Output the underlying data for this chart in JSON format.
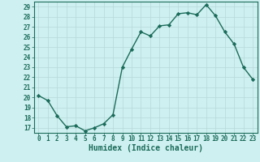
{
  "x": [
    0,
    1,
    2,
    3,
    4,
    5,
    6,
    7,
    8,
    9,
    10,
    11,
    12,
    13,
    14,
    15,
    16,
    17,
    18,
    19,
    20,
    21,
    22,
    23
  ],
  "y": [
    20.2,
    19.7,
    18.2,
    17.1,
    17.2,
    16.7,
    17.0,
    17.4,
    18.3,
    23.0,
    24.8,
    26.5,
    26.1,
    27.1,
    27.2,
    28.3,
    28.4,
    28.2,
    29.2,
    28.1,
    26.5,
    25.3,
    23.0,
    21.8
  ],
  "line_color": "#1a6b5a",
  "marker": "D",
  "marker_size": 2.2,
  "bg_color": "#cff0f0",
  "grid_color": "#b8d8d8",
  "xlabel": "Humidex (Indice chaleur)",
  "xlim": [
    -0.5,
    23.5
  ],
  "ylim": [
    16.5,
    29.5
  ],
  "yticks": [
    17,
    18,
    19,
    20,
    21,
    22,
    23,
    24,
    25,
    26,
    27,
    28,
    29
  ],
  "xticks": [
    0,
    1,
    2,
    3,
    4,
    5,
    6,
    7,
    8,
    9,
    10,
    11,
    12,
    13,
    14,
    15,
    16,
    17,
    18,
    19,
    20,
    21,
    22,
    23
  ],
  "xlabel_fontsize": 7,
  "tick_fontsize": 5.5,
  "line_width": 1.0
}
